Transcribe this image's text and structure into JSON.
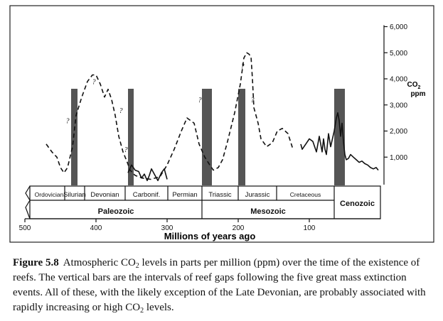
{
  "chart_data": {
    "type": "line",
    "xlabel": "Millions of years ago",
    "ylabel": "CO2 ppm",
    "ylabel_parts": {
      "main": "CO",
      "sub": "2",
      "unit": "ppm"
    },
    "xlim": [
      500,
      0
    ],
    "ylim": [
      0,
      6000
    ],
    "x_ticks": [
      500,
      400,
      300,
      200,
      100
    ],
    "y_ticks": [
      1000,
      2000,
      3000,
      4000,
      5000,
      6000
    ],
    "y_tick_labels": [
      "1,000",
      "2,000",
      "3,000",
      "4,000",
      "5,000",
      "6,000"
    ],
    "grid": false,
    "series": [
      {
        "style": "dashed",
        "x": [
          470,
          462,
          455,
          450,
          445,
          440,
          433,
          428,
          420,
          412,
          405,
          400,
          394,
          388,
          383,
          378,
          373,
          368,
          362,
          356,
          352,
          345,
          335,
          323,
          310,
          300,
          290,
          280,
          272,
          262,
          255,
          247,
          240,
          235,
          228,
          222,
          215,
          205,
          197,
          192,
          188,
          185,
          182,
          180,
          178,
          172,
          168,
          160,
          152,
          145,
          138,
          130,
          123
        ],
        "y": [
          1500,
          1200,
          1000,
          600,
          400,
          600,
          1400,
          2600,
          3300,
          3900,
          4150,
          4150,
          3800,
          3300,
          3600,
          3200,
          2600,
          1800,
          1200,
          800,
          500,
          300,
          200,
          150,
          250,
          700,
          1300,
          2000,
          2500,
          2300,
          1500,
          1000,
          700,
          500,
          600,
          900,
          1600,
          2700,
          3800,
          4800,
          5000,
          4950,
          4850,
          4000,
          2900,
          2300,
          1700,
          1400,
          1550,
          2000,
          2100,
          1900,
          1300
        ]
      },
      {
        "style": "solid",
        "x": [
          112,
          110,
          105,
          100,
          95,
          90,
          86,
          84,
          82,
          80,
          78,
          76,
          73,
          70,
          65,
          62,
          60,
          58,
          56,
          54,
          52,
          50,
          48,
          45,
          42,
          38,
          34,
          30,
          26,
          22,
          18,
          14,
          10,
          6,
          3
        ],
        "y": [
          1500,
          1300,
          1500,
          1700,
          1600,
          1200,
          1800,
          1500,
          1200,
          1700,
          1300,
          1100,
          1900,
          1400,
          2000,
          2500,
          2700,
          2400,
          1800,
          2300,
          1600,
          1100,
          900,
          950,
          1100,
          1000,
          900,
          800,
          850,
          750,
          700,
          600,
          550,
          600,
          500
        ]
      },
      {
        "style": "solid",
        "x": [
          355,
          350,
          345,
          340,
          336,
          332,
          328,
          325,
          322,
          318,
          313,
          308,
          304,
          300
        ],
        "y": [
          400,
          700,
          500,
          450,
          200,
          350,
          100,
          300,
          550,
          350,
          100,
          400,
          550,
          150
        ]
      }
    ],
    "reef_gaps": [
      {
        "start": 435,
        "end": 426
      },
      {
        "start": 355,
        "end": 347
      },
      {
        "start": 251,
        "end": 237
      },
      {
        "start": 200,
        "end": 190
      },
      {
        "start": 65,
        "end": 50
      }
    ],
    "question_marks": [
      {
        "x": 440,
        "y": 2300
      },
      {
        "x": 403,
        "y": 3800
      },
      {
        "x": 365,
        "y": 2700
      },
      {
        "x": 358,
        "y": 1200
      },
      {
        "x": 254,
        "y": 3100
      },
      {
        "x": 194,
        "y": 4400
      },
      {
        "x": 180,
        "y": 3100
      }
    ],
    "periods": [
      {
        "name": "Ordovician",
        "start": 488,
        "end": 444
      },
      {
        "name": "Silurian",
        "start": 444,
        "end": 416
      },
      {
        "name": "Devonian",
        "start": 416,
        "end": 359
      },
      {
        "name": "Carbonif.",
        "start": 359,
        "end": 299
      },
      {
        "name": "Permian",
        "start": 299,
        "end": 251
      },
      {
        "name": "Triassic",
        "start": 251,
        "end": 200
      },
      {
        "name": "Jurassic",
        "start": 200,
        "end": 146
      },
      {
        "name": "Cretaceous",
        "start": 146,
        "end": 65
      }
    ],
    "eras": [
      {
        "name": "Paleozoic",
        "start": 500,
        "end": 251
      },
      {
        "name": "Mesozoic",
        "start": 251,
        "end": 65
      },
      {
        "name": "Cenozoic",
        "start": 65,
        "end": 0
      }
    ]
  },
  "caption": {
    "label": "Figure 5.8",
    "text_parts": [
      {
        "t": "Atmospheric CO"
      },
      {
        "t": "2",
        "sub": true
      },
      {
        "t": " levels in parts per million (ppm) over the time of the existence of reefs. The vertical bars are the intervals of reef gaps following the five great mass extinction events. All of these, with the likely exception of the Late Devonian, are probably associated with rapidly increasing or high CO"
      },
      {
        "t": "2",
        "sub": true
      },
      {
        "t": " levels."
      }
    ]
  }
}
